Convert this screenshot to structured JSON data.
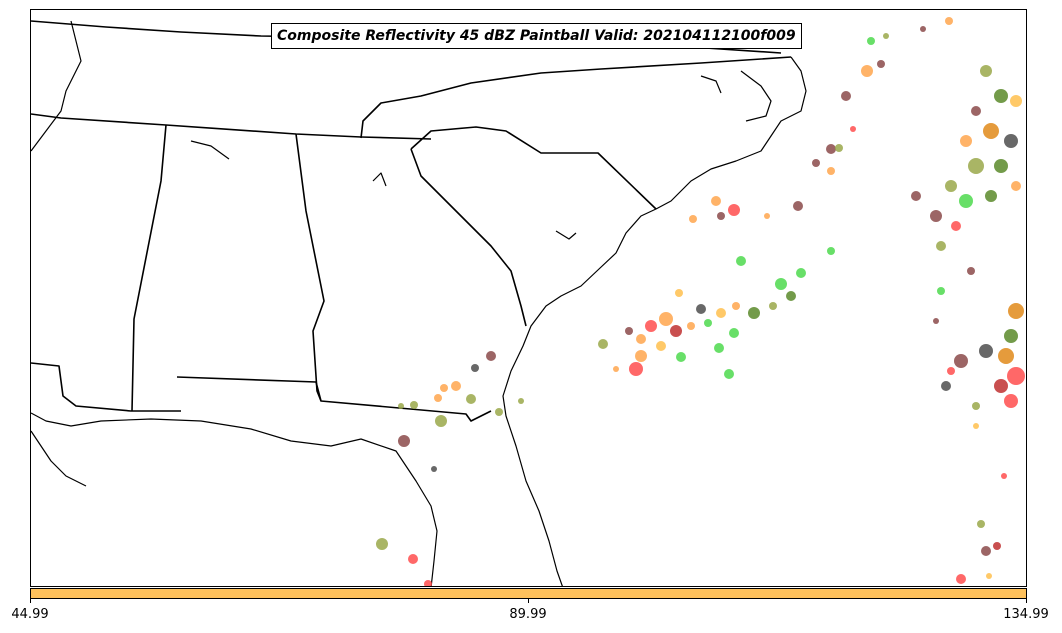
{
  "map": {
    "title": "Composite Reflectivity 45 dBZ Paintball Valid: 202104112100f009",
    "region": "Southeastern United States and western Atlantic",
    "colors": {
      "background": "#ffffff",
      "boundaries": "#000000",
      "paintball_palette": [
        "#ff4d4d",
        "#ffa64d",
        "#ffc04d",
        "#8b4a4a",
        "#4d4d4d",
        "#9aa84a",
        "#5a8a2a",
        "#4dd94d",
        "#e08a1a",
        "#c03030"
      ]
    },
    "colorbar": {
      "color": "#fec15c",
      "ticks": [
        {
          "label": "44.99"
        },
        {
          "label": "89.99"
        },
        {
          "label": "134.99"
        }
      ]
    }
  }
}
